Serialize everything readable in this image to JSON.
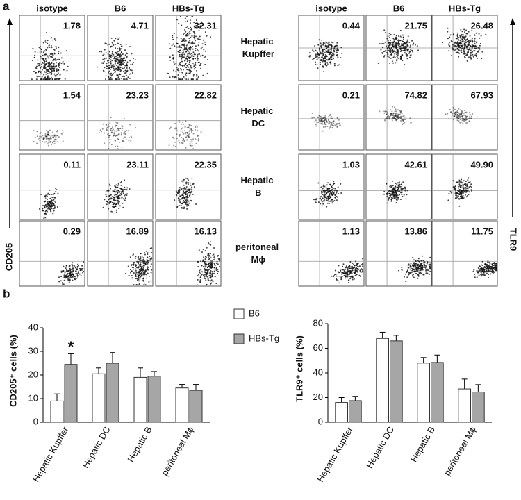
{
  "panel_a": {
    "label": "a",
    "y_axis_left": "CD205",
    "y_axis_right": "TLR9",
    "rows": [
      "Hepatic Kupffer",
      "Hepatic DC",
      "Hepatic B",
      "peritoneal Mϕ"
    ],
    "groups": [
      {
        "columns": [
          "isotype",
          "B6",
          "HBs-Tg"
        ],
        "values": [
          [
            "1.78",
            "4.71",
            "32.31"
          ],
          [
            "1.54",
            "23.23",
            "22.82"
          ],
          [
            "0.11",
            "23.11",
            "22.35"
          ],
          [
            "0.29",
            "16.89",
            "16.13"
          ]
        ]
      },
      {
        "columns": [
          "isotype",
          "B6",
          "HBs-Tg"
        ],
        "values": [
          [
            "0.44",
            "21.75",
            "26.48"
          ],
          [
            "0.21",
            "74.82",
            "67.93"
          ],
          [
            "1.03",
            "42.61",
            "49.90"
          ],
          [
            "1.13",
            "13.86",
            "11.75"
          ]
        ]
      }
    ]
  },
  "panel_b": {
    "label": "b"
  },
  "chart_data": [
    {
      "type": "bar",
      "y_label": "CD205⁺ cells (%)",
      "annotation": "*",
      "categories": [
        "Hepatic Kupffer",
        "Hepatic DC",
        "Hepatic B",
        "peritoneal Mϕ"
      ],
      "ylim": [
        0,
        40
      ],
      "yticks": [
        0,
        10,
        20,
        30,
        40
      ],
      "series": [
        {
          "name": "B6",
          "color": "#ffffff",
          "values": [
            9,
            20.5,
            19,
            14.5
          ],
          "errors": [
            3,
            2.5,
            4,
            1.5
          ]
        },
        {
          "name": "HBs-Tg",
          "color": "#a6a6a6",
          "values": [
            24.5,
            25,
            19.5,
            13.5
          ],
          "errors": [
            4.5,
            4.5,
            2,
            2.5
          ]
        }
      ]
    },
    {
      "type": "bar",
      "y_label": "TLR9⁺ cells (%)",
      "categories": [
        "Hepatic Kupffer",
        "Hepatic DC",
        "Hepatic B",
        "peritoneal Mϕ"
      ],
      "ylim": [
        0,
        80
      ],
      "yticks": [
        0,
        20,
        40,
        60,
        80
      ],
      "series": [
        {
          "color": "#ffffff",
          "values": [
            16,
            68,
            48,
            27
          ],
          "errors": [
            4,
            5,
            4.5,
            8
          ]
        },
        {
          "color": "#a6a6a6",
          "values": [
            17.5,
            66,
            48.5,
            24.5
          ],
          "errors": [
            3.5,
            4.5,
            6,
            6
          ]
        }
      ]
    }
  ]
}
